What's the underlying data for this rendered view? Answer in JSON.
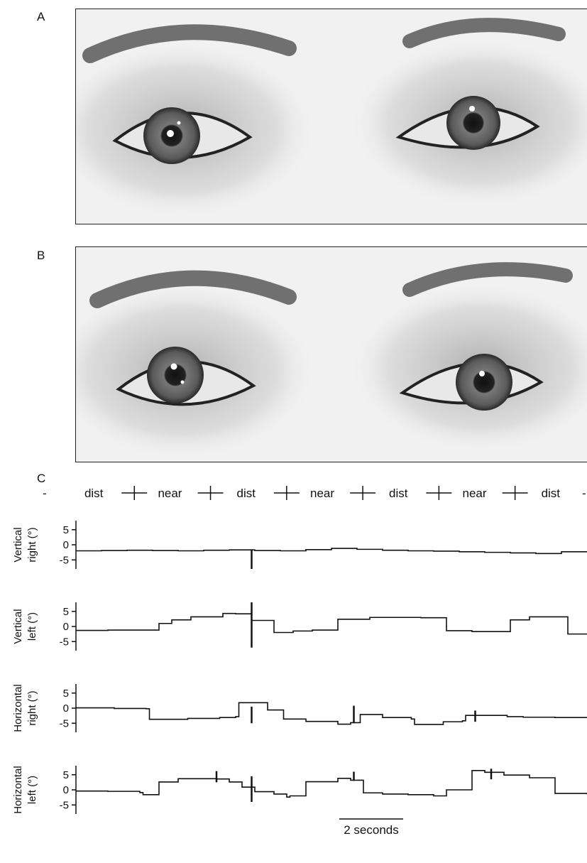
{
  "panels": {
    "a": "A",
    "b": "B",
    "c": "C"
  },
  "chart_data": {
    "type": "line",
    "title": "",
    "condition_labels": [
      "dist",
      "near",
      "dist",
      "near",
      "dist",
      "near",
      "dist"
    ],
    "condition_prefix": "-",
    "condition_suffix": "-",
    "scale_bar_label": "2 seconds",
    "scale_bar_seconds": 2,
    "xlim": [
      0,
      16
    ],
    "yticks": [
      5,
      0,
      -5
    ],
    "ylim": [
      -8,
      8
    ],
    "subplots": [
      {
        "ylabel": [
          "Vertical",
          "right (°)"
        ],
        "x": [
          0,
          0.8,
          1.6,
          2.4,
          3.2,
          4.0,
          4.8,
          5.6,
          6.4,
          7.2,
          8.0,
          8.8,
          9.6,
          10.4,
          11.2,
          12.0,
          12.8,
          13.6,
          14.4,
          15.2,
          16.0
        ],
        "values": [
          -2.0,
          -1.9,
          -1.8,
          -1.9,
          -2.0,
          -1.8,
          -1.7,
          -1.9,
          -2.0,
          -1.6,
          -1.2,
          -1.5,
          -1.8,
          -2.0,
          -2.1,
          -2.3,
          -2.5,
          -2.7,
          -2.9,
          -2.3,
          -2.3
        ],
        "spikes": [
          {
            "x": 5.5,
            "min": -8,
            "max": -1.5
          }
        ]
      },
      {
        "ylabel": [
          "Vertical",
          "left (°)"
        ],
        "x": [
          0,
          1.0,
          2.0,
          2.6,
          3.0,
          3.6,
          4.6,
          5.0,
          5.5,
          6.2,
          6.8,
          7.4,
          8.2,
          9.2,
          10.0,
          10.8,
          11.6,
          12.4,
          13.0,
          13.6,
          14.2,
          15.0,
          15.4,
          16.0
        ],
        "values": [
          -1.3,
          -1.2,
          -1.2,
          1.0,
          2.2,
          3.2,
          4.3,
          4.2,
          2.0,
          -2.0,
          -1.5,
          -1.2,
          2.4,
          3.0,
          3.0,
          2.9,
          -1.4,
          -1.7,
          -1.7,
          2.2,
          3.2,
          3.2,
          -2.5,
          -2.5
        ],
        "spikes": [
          {
            "x": 5.5,
            "min": -7,
            "max": 8
          }
        ]
      },
      {
        "ylabel": [
          "Horizontal",
          "right (°)"
        ],
        "x": [
          0,
          1.2,
          2.2,
          2.3,
          3.5,
          4.5,
          5.0,
          5.1,
          6.0,
          6.4,
          6.5,
          7.2,
          8.2,
          8.6,
          8.9,
          9.6,
          10.5,
          10.6,
          11.5,
          12.1,
          12.2,
          13.5,
          14.0,
          15.0,
          16.0
        ],
        "values": [
          0.1,
          -0.1,
          -0.2,
          -3.7,
          -3.4,
          -3.1,
          -2.8,
          1.8,
          -0.6,
          -0.6,
          -3.6,
          -4.4,
          -5.3,
          -4.8,
          -2.1,
          -3.1,
          -3.6,
          -5.4,
          -4.5,
          -4.2,
          -2.4,
          -2.8,
          -3.0,
          -3.1,
          -3.3
        ],
        "spikes": [
          {
            "x": 5.5,
            "min": -5,
            "max": 0.5
          },
          {
            "x": 8.7,
            "min": -5,
            "max": 0.8
          },
          {
            "x": 12.5,
            "min": -4.5,
            "max": -0.8
          }
        ]
      },
      {
        "ylabel": [
          "Horizontal",
          "left (°)"
        ],
        "x": [
          0,
          1.0,
          2.0,
          2.1,
          2.6,
          3.2,
          4.4,
          4.8,
          5.2,
          5.6,
          6.2,
          6.6,
          6.7,
          7.2,
          8.2,
          8.6,
          9.0,
          9.6,
          10.4,
          11.2,
          11.6,
          12.4,
          12.8,
          13.4,
          14.2,
          15.0,
          16.0
        ],
        "values": [
          -0.4,
          -0.5,
          -0.9,
          -1.6,
          2.6,
          3.7,
          3.6,
          2.6,
          0.9,
          -0.6,
          -1.4,
          -2.4,
          -2.0,
          2.7,
          3.8,
          3.2,
          -1.0,
          -1.4,
          -1.6,
          -2.0,
          0.0,
          6.4,
          5.8,
          4.9,
          4.0,
          -1.2,
          -1.5
        ],
        "spikes": [
          {
            "x": 4.4,
            "min": 2.5,
            "max": 6.2
          },
          {
            "x": 5.5,
            "min": -4,
            "max": 4.5
          },
          {
            "x": 8.7,
            "min": 3.0,
            "max": 6.0
          },
          {
            "x": 13.0,
            "min": 3.5,
            "max": 7.0
          }
        ]
      }
    ]
  }
}
